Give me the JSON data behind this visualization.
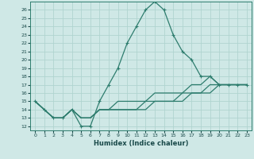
{
  "xlabel": "Humidex (Indice chaleur)",
  "background_color": "#cfe8e6",
  "grid_color": "#b0d4d0",
  "line_color": "#2e7d6e",
  "xlim": [
    -0.5,
    23.5
  ],
  "ylim": [
    11.5,
    27
  ],
  "xticks": [
    0,
    1,
    2,
    3,
    4,
    5,
    6,
    7,
    8,
    9,
    10,
    11,
    12,
    13,
    14,
    15,
    16,
    17,
    18,
    19,
    20,
    21,
    22,
    23
  ],
  "yticks": [
    12,
    13,
    14,
    15,
    16,
    17,
    18,
    19,
    20,
    21,
    22,
    23,
    24,
    25,
    26
  ],
  "series": [
    [
      15,
      14,
      13,
      13,
      14,
      12,
      12,
      15,
      17,
      19,
      22,
      24,
      26,
      27,
      26,
      23,
      21,
      20,
      18,
      18,
      17,
      17,
      17,
      17
    ],
    [
      15,
      14,
      13,
      13,
      14,
      13,
      13,
      14,
      14,
      14,
      14,
      14,
      15,
      15,
      15,
      15,
      15,
      16,
      16,
      17,
      17,
      17,
      17,
      17
    ],
    [
      15,
      14,
      13,
      13,
      14,
      13,
      13,
      14,
      14,
      15,
      15,
      15,
      15,
      16,
      16,
      16,
      16,
      17,
      17,
      18,
      17,
      17,
      17,
      17
    ],
    [
      15,
      14,
      13,
      13,
      14,
      13,
      13,
      14,
      14,
      14,
      14,
      14,
      14,
      15,
      15,
      15,
      16,
      16,
      16,
      16,
      17,
      17,
      17,
      17
    ]
  ]
}
